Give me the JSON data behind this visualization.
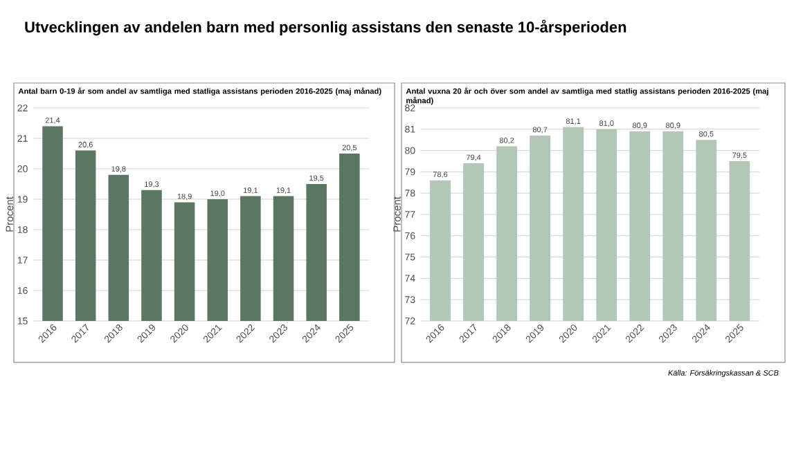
{
  "chart_data": [
    {
      "type": "bar",
      "title": "Utvecklingen av andelen barn med personlig assistans den senaste 10-årsperioden",
      "subtitle": "Antal barn 0-19 år som andel av samtliga med statliga assistans perioden 2016-2025 (maj månad)",
      "ylabel": "Procent",
      "categories": [
        "2016",
        "2017",
        "2018",
        "2019",
        "2020",
        "2021",
        "2022",
        "2023",
        "2024",
        "2025"
      ],
      "series": [
        {
          "color": "#5b7762",
          "values": [
            21.4,
            20.6,
            19.8,
            19.3,
            18.9,
            19.0,
            19.1,
            19.1,
            19.5,
            20.5
          ],
          "value_labels": [
            "21,4",
            "20,6",
            "19,8",
            "19,3",
            "18,9",
            "19,0",
            "19,1",
            "19,1",
            "19,5",
            "20,5"
          ]
        }
      ],
      "ylim": [
        15,
        22
      ],
      "yticks": [
        15,
        16,
        17,
        18,
        19,
        20,
        21,
        22
      ],
      "grid": "y"
    },
    {
      "type": "bar",
      "subtitle": "Antal vuxna 20 år och över  som andel av  samtliga med statlig assistans perioden 2016-2025 (maj månad)",
      "ylabel": "Procent",
      "categories": [
        "2016",
        "2017",
        "2018",
        "2019",
        "2020",
        "2021",
        "2022",
        "2023",
        "2024",
        "2025"
      ],
      "series": [
        {
          "color": "#b4c6b6",
          "values": [
            78.6,
            79.4,
            80.2,
            80.7,
            81.1,
            81.0,
            80.9,
            80.9,
            80.5,
            79.5
          ],
          "value_labels": [
            "78,6",
            "79,4",
            "80,2",
            "80,7",
            "81,1",
            "81,0",
            "80,9",
            "80,9",
            "80,5",
            "79,5"
          ]
        }
      ],
      "ylim": [
        72,
        82
      ],
      "yticks": [
        72,
        73,
        74,
        75,
        76,
        77,
        78,
        79,
        80,
        81,
        82
      ],
      "grid": "y",
      "annotations": [
        "Källa: Försäkringskassan & SCB"
      ]
    }
  ]
}
